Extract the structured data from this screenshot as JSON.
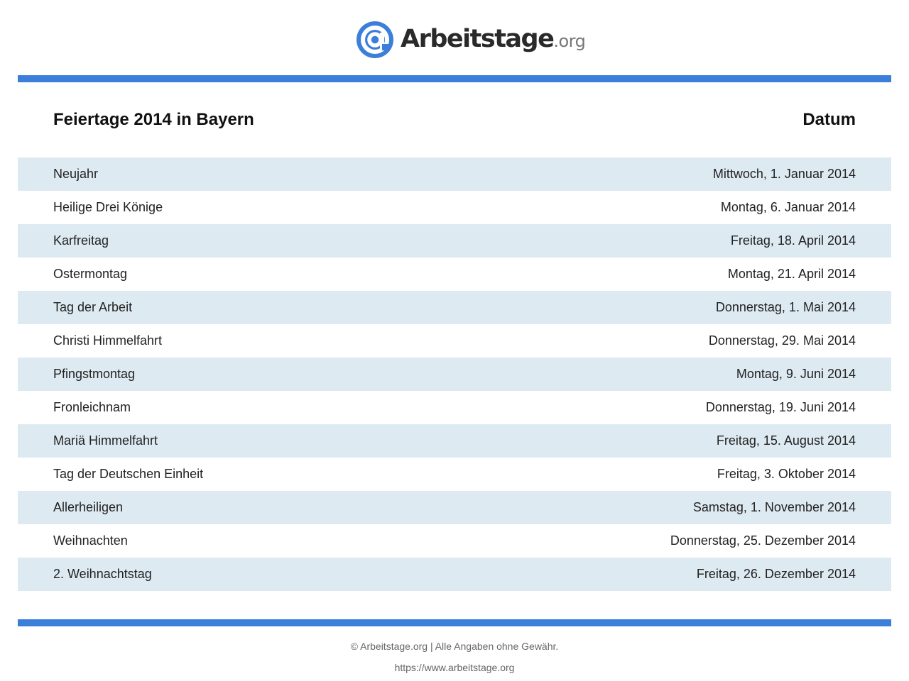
{
  "brand": {
    "name": "Arbeitstage",
    "tld": ".org",
    "accent_color": "#3b7fdb",
    "icon": "at-sign-icon"
  },
  "table": {
    "title": "Feiertage 2014 in Bayern",
    "date_header": "Datum",
    "row_colors": [
      "#deeaf2",
      "#ffffff"
    ],
    "rows": [
      {
        "name": "Neujahr",
        "date": "Mittwoch, 1. Januar 2014"
      },
      {
        "name": "Heilige Drei Könige",
        "date": "Montag, 6. Januar 2014"
      },
      {
        "name": "Karfreitag",
        "date": "Freitag, 18. April 2014"
      },
      {
        "name": "Ostermontag",
        "date": "Montag, 21. April 2014"
      },
      {
        "name": "Tag der Arbeit",
        "date": "Donnerstag, 1. Mai 2014"
      },
      {
        "name": "Christi Himmelfahrt",
        "date": "Donnerstag, 29. Mai 2014"
      },
      {
        "name": "Pfingstmontag",
        "date": "Montag, 9. Juni 2014"
      },
      {
        "name": "Fronleichnam",
        "date": "Donnerstag, 19. Juni 2014"
      },
      {
        "name": "Mariä Himmelfahrt",
        "date": "Freitag, 15. August 2014"
      },
      {
        "name": "Tag der Deutschen Einheit",
        "date": "Freitag, 3. Oktober 2014"
      },
      {
        "name": "Allerheiligen",
        "date": "Samstag, 1. November 2014"
      },
      {
        "name": "Weihnachten",
        "date": "Donnerstag, 25. Dezember 2014"
      },
      {
        "name": "2. Weihnachtstag",
        "date": "Freitag, 26. Dezember 2014"
      }
    ]
  },
  "footer": {
    "copyright": "© Arbeitstage.org | Alle Angaben ohne Gewähr.",
    "url": "https://www.arbeitstage.org"
  }
}
